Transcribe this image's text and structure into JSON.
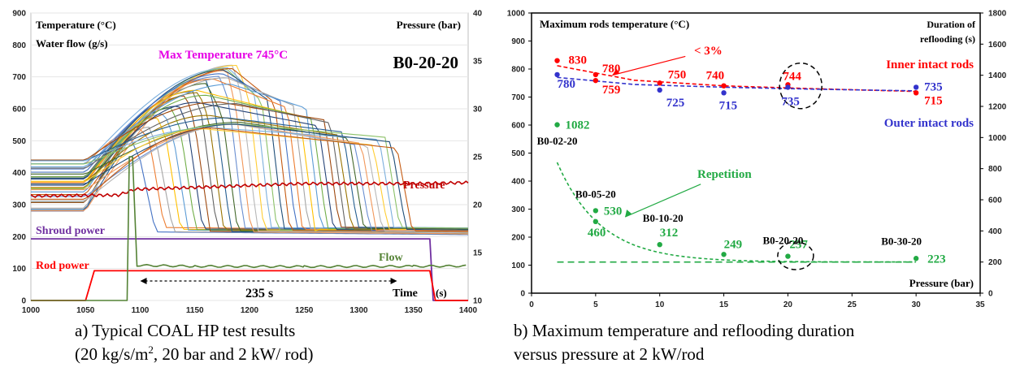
{
  "chart_data": [
    {
      "type": "line",
      "panel": "a",
      "caption_line1": "a) Typical COAL HP test results",
      "caption_line2_pre": "(20 kg/s/m",
      "caption_line2_sup": "2",
      "caption_line2_post": ", 20 bar and 2 kW/ rod)",
      "label_left_1": "Temperature (°C)",
      "label_left_2": "Water flow (g/s)",
      "label_right": "Pressure (bar)",
      "test_id": "B0-20-20",
      "max_temp_label": "Max Temperature 745°C",
      "pressure_label": "Pressure",
      "shroud_label": "Shroud power",
      "rod_label": "Rod power",
      "flow_label": "Flow",
      "time_label": "Time",
      "time_unit": "(s)",
      "duration_label": "235 s",
      "xlim": [
        1000,
        1400
      ],
      "x_ticks": [
        "1000",
        "1050",
        "1100",
        "1150",
        "1200",
        "1250",
        "1300",
        "1350",
        "1400"
      ],
      "ylim_left": [
        0,
        900
      ],
      "y_ticks_left": [
        "0",
        "100",
        "200",
        "300",
        "400",
        "500",
        "600",
        "700",
        "800",
        "900"
      ],
      "ylim_right": [
        10,
        40
      ],
      "y_ticks_right": [
        "10",
        "15",
        "20",
        "25",
        "30",
        "35",
        "40"
      ],
      "duration_arrow": [
        1100,
        1335
      ],
      "series": [
        {
          "name": "Pressure",
          "color": "#c00000",
          "axis": "right",
          "points": [
            [
              1000,
              20.9
            ],
            [
              1080,
              21.0
            ],
            [
              1095,
              21.6
            ],
            [
              1150,
              21.8
            ],
            [
              1250,
              22.2
            ],
            [
              1350,
              22.2
            ],
            [
              1400,
              22.3
            ]
          ]
        },
        {
          "name": "Shroud power",
          "color": "#7030a0",
          "axis": "left",
          "points": [
            [
              1000,
              193
            ],
            [
              1365,
              193
            ],
            [
              1368,
              0
            ],
            [
              1400,
              0
            ]
          ]
        },
        {
          "name": "Rod power",
          "color": "#ff0000",
          "axis": "left",
          "points": [
            [
              1000,
              0
            ],
            [
              1050,
              0
            ],
            [
              1058,
              93
            ],
            [
              1365,
              93
            ],
            [
              1370,
              0
            ],
            [
              1400,
              0
            ]
          ]
        },
        {
          "name": "Flow",
          "color": "#548235",
          "axis": "left",
          "points": [
            [
              1000,
              0
            ],
            [
              1088,
              0
            ],
            [
              1090,
              450
            ],
            [
              1093,
              450
            ],
            [
              1097,
              110
            ],
            [
              1150,
              107
            ],
            [
              1250,
              106
            ],
            [
              1350,
              107
            ],
            [
              1400,
              108
            ]
          ]
        }
      ],
      "temperature_envelope": {
        "start_min": 280,
        "start_max": 440,
        "ramp_start": 1050,
        "peak_time_min": 1150,
        "peak_time_max": 1195,
        "peak_min": 400,
        "peak_max": 745,
        "quench_time_min": 1100,
        "quench_time_max": 1335,
        "post_quench": 215,
        "count": 40
      }
    },
    {
      "type": "scatter",
      "panel": "b",
      "caption_line1": "b) Maximum temperature and reflooding duration",
      "caption_line2": "versus pressure at 2 kW/rod",
      "title_left": "Maximum rods temperature (°C)",
      "title_right_1": "Duration of",
      "title_right_2": "reflooding (s)",
      "xlabel": "Pressure (bar)",
      "xlim": [
        0,
        35
      ],
      "x_ticks": [
        "0",
        "5",
        "10",
        "15",
        "20",
        "25",
        "30",
        "35"
      ],
      "ylim_left": [
        0,
        1000
      ],
      "y_ticks_left": [
        "0",
        "100",
        "200",
        "300",
        "400",
        "500",
        "600",
        "700",
        "800",
        "900",
        "1000"
      ],
      "ylim_right": [
        0,
        1800
      ],
      "y_ticks_right": [
        "0",
        "200",
        "400",
        "600",
        "800",
        "1000",
        "1200",
        "1400",
        "1600",
        "1800"
      ],
      "colors": {
        "inner": "#ff0000",
        "outer": "#3333cc",
        "duration": "#22aa44"
      },
      "inner_label": "Inner intact rods",
      "outer_label": "Outer intact rods",
      "repetition_label": "Repetition",
      "pct_label": "< 3%",
      "inner": [
        {
          "x": 2,
          "y": 830,
          "label": "830"
        },
        {
          "x": 5,
          "y": 780,
          "label": "780"
        },
        {
          "x": 5,
          "y": 759,
          "label": "759"
        },
        {
          "x": 10,
          "y": 750,
          "label": "750"
        },
        {
          "x": 15,
          "y": 740,
          "label": "740"
        },
        {
          "x": 20,
          "y": 744,
          "label": "744"
        },
        {
          "x": 30,
          "y": 715,
          "label": "715"
        }
      ],
      "outer": [
        {
          "x": 2,
          "y": 780,
          "label": "780"
        },
        {
          "x": 10,
          "y": 725,
          "label": "725"
        },
        {
          "x": 15,
          "y": 715,
          "label": "715"
        },
        {
          "x": 20,
          "y": 735,
          "label": "735"
        },
        {
          "x": 30,
          "y": 735,
          "label": "735"
        }
      ],
      "duration": [
        {
          "x": 2,
          "y": 1082,
          "label": "1082"
        },
        {
          "x": 5,
          "y": 530,
          "label": "530"
        },
        {
          "x": 5,
          "y": 460,
          "label": "460"
        },
        {
          "x": 10,
          "y": 312,
          "label": "312"
        },
        {
          "x": 15,
          "y": 249,
          "label": "249"
        },
        {
          "x": 20,
          "y": 237,
          "label": "237"
        },
        {
          "x": 30,
          "y": 223,
          "label": "223"
        }
      ],
      "test_labels": [
        {
          "x": 2,
          "text": "B0-02-20"
        },
        {
          "x": 5,
          "text": "B0-05-20"
        },
        {
          "x": 10,
          "text": "B0-10-20"
        },
        {
          "x": 20,
          "text": "B0-20-20"
        },
        {
          "x": 30,
          "text": "B0-30-20"
        }
      ],
      "baseline_right": 200
    }
  ]
}
